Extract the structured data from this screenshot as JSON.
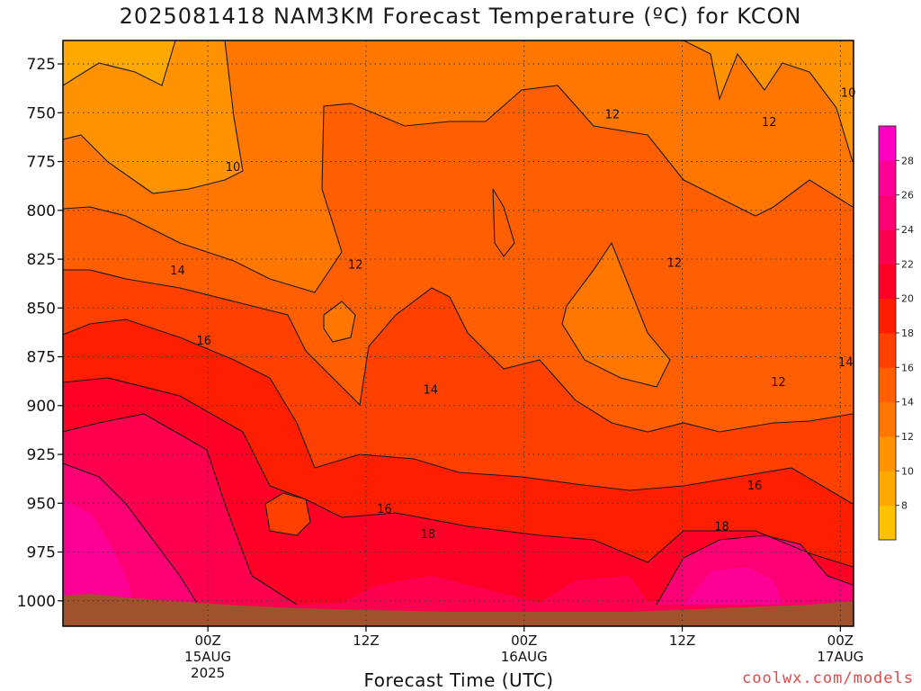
{
  "title": "2025081418 NAM3KM Forecast Temperature (ºC) for KCON",
  "credit": "coolwx.com/models",
  "chart_data": {
    "type": "heatmap",
    "title": "2025081418 NAM3KM Forecast Temperature (ºC) for KCON",
    "xlabel": "Forecast Time (UTC)",
    "ylabel": "",
    "y_ticks": [
      725,
      750,
      775,
      800,
      825,
      850,
      875,
      900,
      925,
      950,
      975,
      1000
    ],
    "y_range_hPa": [
      1013,
      713
    ],
    "x_range_hours": [
      -5,
      55
    ],
    "x_ticks": [
      {
        "hour": 6,
        "lines": [
          "00Z",
          "15AUG",
          "2025"
        ]
      },
      {
        "hour": 18,
        "lines": [
          "12Z"
        ]
      },
      {
        "hour": 30,
        "lines": [
          "00Z",
          "16AUG"
        ]
      },
      {
        "hour": 42,
        "lines": [
          "12Z"
        ]
      },
      {
        "hour": 54,
        "lines": [
          "00Z",
          "17AUG"
        ]
      }
    ],
    "colorbar": {
      "levels": [
        6,
        8,
        10,
        12,
        14,
        16,
        18,
        20,
        22,
        24,
        26,
        28,
        30
      ],
      "labels": [
        8,
        10,
        12,
        14,
        16,
        18,
        20,
        22,
        24,
        26,
        28
      ],
      "colors": [
        "#FFC200",
        "#FFA800",
        "#FF9200",
        "#FF7700",
        "#FF5F00",
        "#FF4000",
        "#FF1E00",
        "#FF0026",
        "#FF0050",
        "#FF0074",
        "#FF0096",
        "#FF00C4"
      ]
    },
    "contour_labels": [
      {
        "text": "10",
        "hour": 7.9,
        "p": 778
      },
      {
        "text": "12",
        "hour": 36.7,
        "p": 751
      },
      {
        "text": "12",
        "hour": 48.6,
        "p": 755
      },
      {
        "text": "10",
        "hour": 54.6,
        "p": 740
      },
      {
        "text": "12",
        "hour": 17.2,
        "p": 828
      },
      {
        "text": "12",
        "hour": 41.4,
        "p": 827
      },
      {
        "text": "14",
        "hour": 3.7,
        "p": 831
      },
      {
        "text": "16",
        "hour": 5.7,
        "p": 867
      },
      {
        "text": "14",
        "hour": 22.9,
        "p": 892
      },
      {
        "text": "12",
        "hour": 49.3,
        "p": 888
      },
      {
        "text": "14",
        "hour": 54.4,
        "p": 878
      },
      {
        "text": "16",
        "hour": 47.5,
        "p": 941
      },
      {
        "text": "16",
        "hour": 19.4,
        "p": 953
      },
      {
        "text": "18",
        "hour": 22.7,
        "p": 966
      },
      {
        "text": "18",
        "hour": 45.0,
        "p": 962
      }
    ],
    "ground_color": "#A0522D"
  }
}
